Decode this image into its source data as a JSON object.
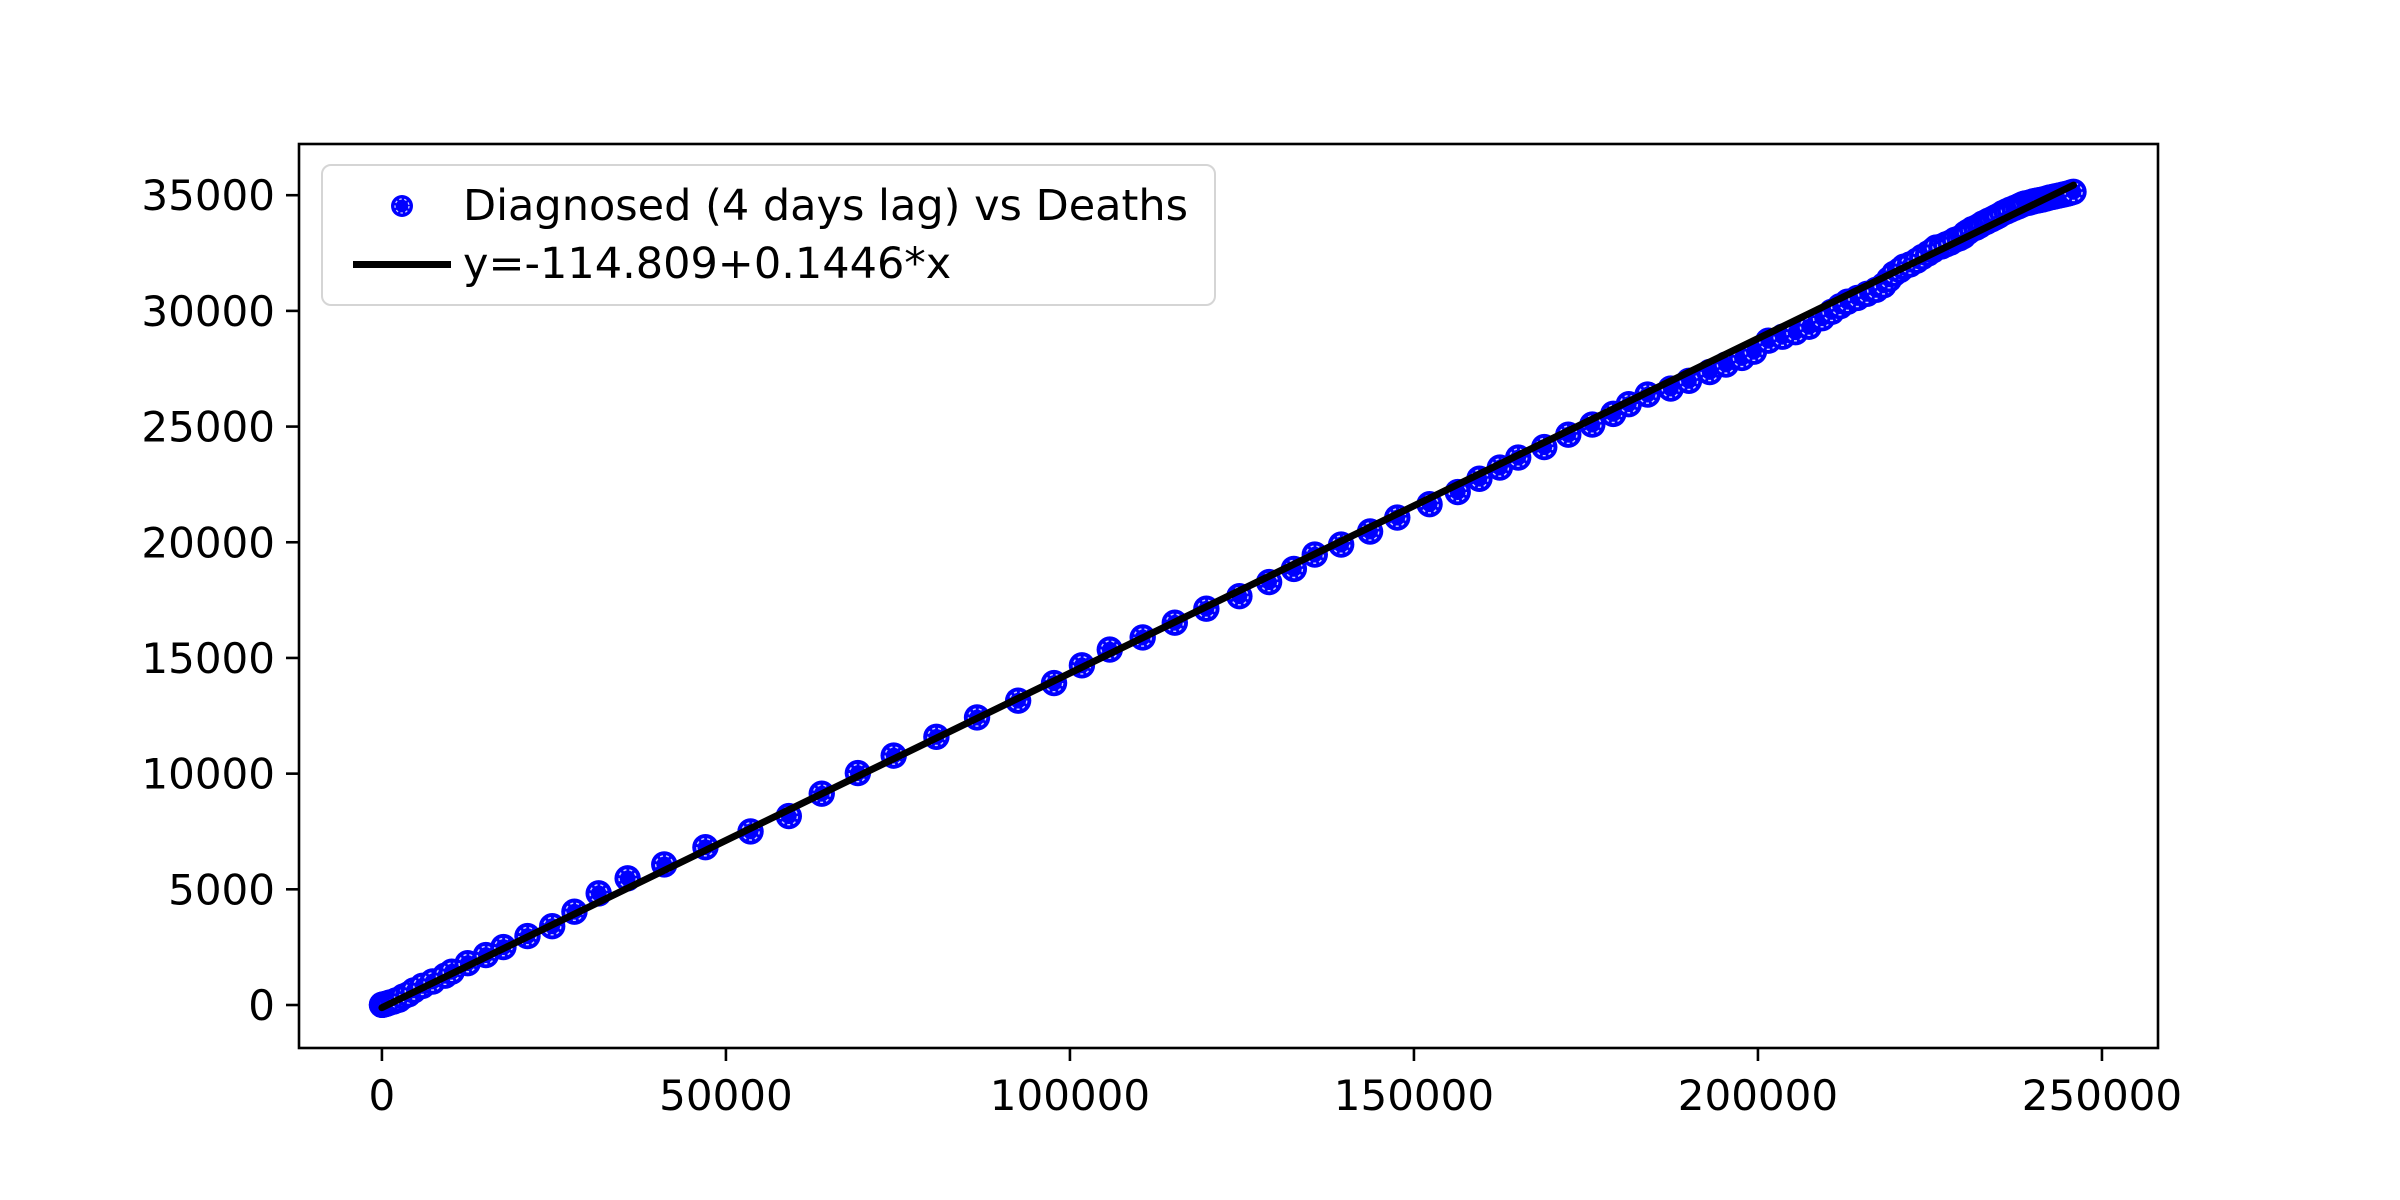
{
  "figure": {
    "background_color": "#ffffff"
  },
  "chart_data": {
    "type": "scatter",
    "title": "",
    "xlabel": "",
    "ylabel": "",
    "grid": false,
    "xlim": [
      -12053,
      258146
    ],
    "ylim": [
      -1858,
      37213
    ],
    "x_ticks": [
      0,
      50000,
      100000,
      150000,
      200000,
      250000
    ],
    "x_tick_labels": [
      "0",
      "50000",
      "100000",
      "150000",
      "200000",
      "250000"
    ],
    "y_ticks": [
      0,
      5000,
      10000,
      15000,
      20000,
      25000,
      30000,
      35000
    ],
    "y_tick_labels": [
      "0",
      "5000",
      "10000",
      "15000",
      "20000",
      "25000",
      "30000",
      "35000"
    ],
    "colors": {
      "scatter_marker": "#0000ff",
      "fit_line": "#000000",
      "axes": "#000000"
    },
    "legend": {
      "position": "upper left",
      "entries": [
        {
          "label": "Diagnosed (4 days lag) vs Deaths",
          "marker": "circle",
          "color": "#0000ff"
        },
        {
          "label": "y=-114.809+0.1446*x",
          "marker": "line",
          "color": "#000000"
        }
      ]
    },
    "series": [
      {
        "name": "Diagnosed (4 days lag) vs Deaths",
        "type": "scatter",
        "color": "#0000ff",
        "points": [
          [
            3,
            7
          ],
          [
            20,
            10
          ],
          [
            79,
            12
          ],
          [
            132,
            17
          ],
          [
            229,
            21
          ],
          [
            322,
            29
          ],
          [
            400,
            34
          ],
          [
            650,
            52
          ],
          [
            888,
            79
          ],
          [
            1128,
            107
          ],
          [
            1694,
            148
          ],
          [
            2036,
            197
          ],
          [
            2502,
            233
          ],
          [
            3089,
            366
          ],
          [
            3858,
            463
          ],
          [
            4636,
            631
          ],
          [
            5883,
            827
          ],
          [
            7375,
            1016
          ],
          [
            9172,
            1266
          ],
          [
            10149,
            1441
          ],
          [
            12462,
            1809
          ],
          [
            15113,
            2158
          ],
          [
            17660,
            2503
          ],
          [
            21157,
            2978
          ],
          [
            24747,
            3405
          ],
          [
            27980,
            4032
          ],
          [
            31506,
            4825
          ],
          [
            35713,
            5476
          ],
          [
            41035,
            6077
          ],
          [
            47021,
            6820
          ],
          [
            53578,
            7503
          ],
          [
            59138,
            8165
          ],
          [
            63927,
            9134
          ],
          [
            69176,
            10023
          ],
          [
            74386,
            10779
          ],
          [
            80589,
            11591
          ],
          [
            86498,
            12428
          ],
          [
            92472,
            13155
          ],
          [
            97689,
            13915
          ],
          [
            101739,
            14681
          ],
          [
            105792,
            15362
          ],
          [
            110574,
            15887
          ],
          [
            115242,
            16523
          ],
          [
            119827,
            17127
          ],
          [
            124632,
            17669
          ],
          [
            128948,
            18279
          ],
          [
            132547,
            18849
          ],
          [
            135586,
            19468
          ],
          [
            139422,
            19899
          ],
          [
            143626,
            20465
          ],
          [
            147577,
            21067
          ],
          [
            152271,
            21645
          ],
          [
            156363,
            22170
          ],
          [
            159516,
            22745
          ],
          [
            162488,
            23227
          ],
          [
            165155,
            23660
          ],
          [
            168941,
            24114
          ],
          [
            172434,
            24648
          ],
          [
            175925,
            25085
          ],
          [
            178972,
            25549
          ],
          [
            181228,
            25969
          ],
          [
            183957,
            26384
          ],
          [
            187327,
            26644
          ],
          [
            189973,
            26977
          ],
          [
            192994,
            27359
          ],
          [
            195351,
            27682
          ],
          [
            197675,
            27967
          ],
          [
            199414,
            28236
          ],
          [
            201505,
            28710
          ],
          [
            203591,
            28884
          ],
          [
            205463,
            29079
          ],
          [
            207428,
            29315
          ],
          [
            209328,
            29684
          ],
          [
            210717,
            29958
          ],
          [
            211938,
            30201
          ],
          [
            213013,
            30395
          ],
          [
            214457,
            30560
          ],
          [
            215858,
            30739
          ],
          [
            217185,
            30911
          ],
          [
            218268,
            31106
          ],
          [
            219070,
            31368
          ],
          [
            219814,
            31610
          ],
          [
            220647,
            31763
          ],
          [
            221216,
            31908
          ],
          [
            222104,
            32007
          ],
          [
            223096,
            32169
          ],
          [
            223885,
            32330
          ],
          [
            224760,
            32486
          ],
          [
            225435,
            32616
          ],
          [
            225886,
            32735
          ],
          [
            226699,
            32785
          ],
          [
            227364,
            32877
          ],
          [
            228006,
            32955
          ],
          [
            228658,
            33072
          ],
          [
            229327,
            33142
          ],
          [
            229858,
            33229
          ],
          [
            230158,
            33340
          ],
          [
            230555,
            33415
          ],
          [
            231139,
            33530
          ],
          [
            231732,
            33601
          ],
          [
            232248,
            33689
          ],
          [
            232664,
            33774
          ],
          [
            233197,
            33846
          ],
          [
            233515,
            33899
          ],
          [
            234013,
            33964
          ],
          [
            234531,
            34043
          ],
          [
            234998,
            34114
          ],
          [
            235561,
            34223
          ],
          [
            236142,
            34301
          ],
          [
            236651,
            34371
          ],
          [
            237290,
            34448
          ],
          [
            237828,
            34514
          ],
          [
            238159,
            34561
          ],
          [
            238499,
            34610
          ],
          [
            238833,
            34644
          ],
          [
            239410,
            34678
          ],
          [
            239821,
            34716
          ],
          [
            240136,
            34744
          ],
          [
            240578,
            34767
          ],
          [
            240961,
            34788
          ],
          [
            241419,
            34818
          ],
          [
            241956,
            34861
          ],
          [
            242363,
            34899
          ],
          [
            242827,
            34926
          ],
          [
            243230,
            34954
          ],
          [
            243736,
            34984
          ],
          [
            244216,
            35017
          ],
          [
            244624,
            35042
          ],
          [
            245032,
            35073
          ],
          [
            245338,
            35097
          ],
          [
            245590,
            35123
          ],
          [
            245864,
            35146
          ]
        ]
      },
      {
        "name": "y=-114.809+0.1446*x",
        "type": "line",
        "color": "#000000",
        "intercept": -114.809,
        "slope": 0.1446,
        "x_start": 3,
        "x_end": 245864
      }
    ]
  }
}
